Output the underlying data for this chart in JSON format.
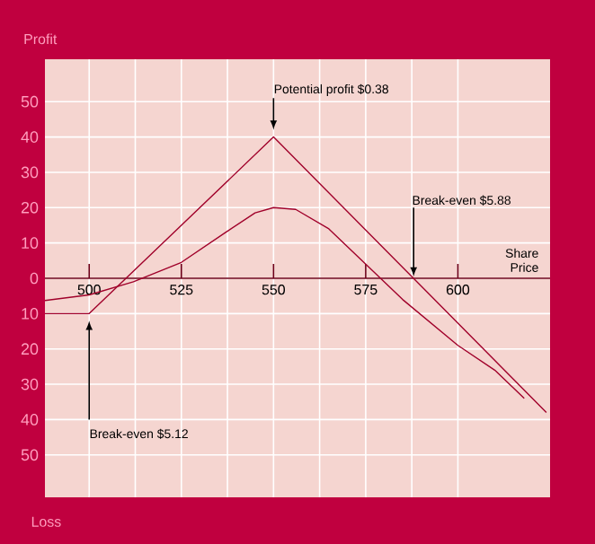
{
  "chart_data": {
    "type": "line",
    "xlabel": "Share Price",
    "ylabel": "Profit",
    "xlim": [
      488,
      625
    ],
    "ylim": [
      -62,
      62
    ],
    "xticks": [
      500,
      525,
      550,
      575,
      600
    ],
    "yticks": [
      {
        "value": -50,
        "label": "50"
      },
      {
        "value": -40,
        "label": "40"
      },
      {
        "value": -30,
        "label": "30"
      },
      {
        "value": -20,
        "label": "20"
      },
      {
        "value": -10,
        "label": "10"
      },
      0,
      10,
      20,
      30,
      40,
      50
    ],
    "grid": true,
    "marker": "none",
    "line_style": "solid",
    "series": [
      {
        "color": "#a0002a",
        "x": [
          488,
          500,
          550,
          624
        ],
        "values": [
          -10,
          -10,
          40,
          -38
        ]
      },
      {
        "color": "#a0002a",
        "x": [
          488,
          500,
          512,
          525,
          537,
          545,
          550,
          556,
          565,
          575,
          585,
          600,
          610,
          618
        ],
        "values": [
          -6.3,
          -4.7,
          -1,
          4.5,
          13,
          18.5,
          20,
          19.5,
          14,
          4,
          -6,
          -19,
          -26,
          -34
        ]
      }
    ],
    "annotations": [
      {
        "text": "Potential profit $0.38",
        "x": 550,
        "y": 40
      },
      {
        "text": "Break-even $5.88",
        "x": 588,
        "y": 0
      },
      {
        "text": "Break-even $5.12",
        "x": 500,
        "y": -11
      },
      "Loss"
    ]
  }
}
